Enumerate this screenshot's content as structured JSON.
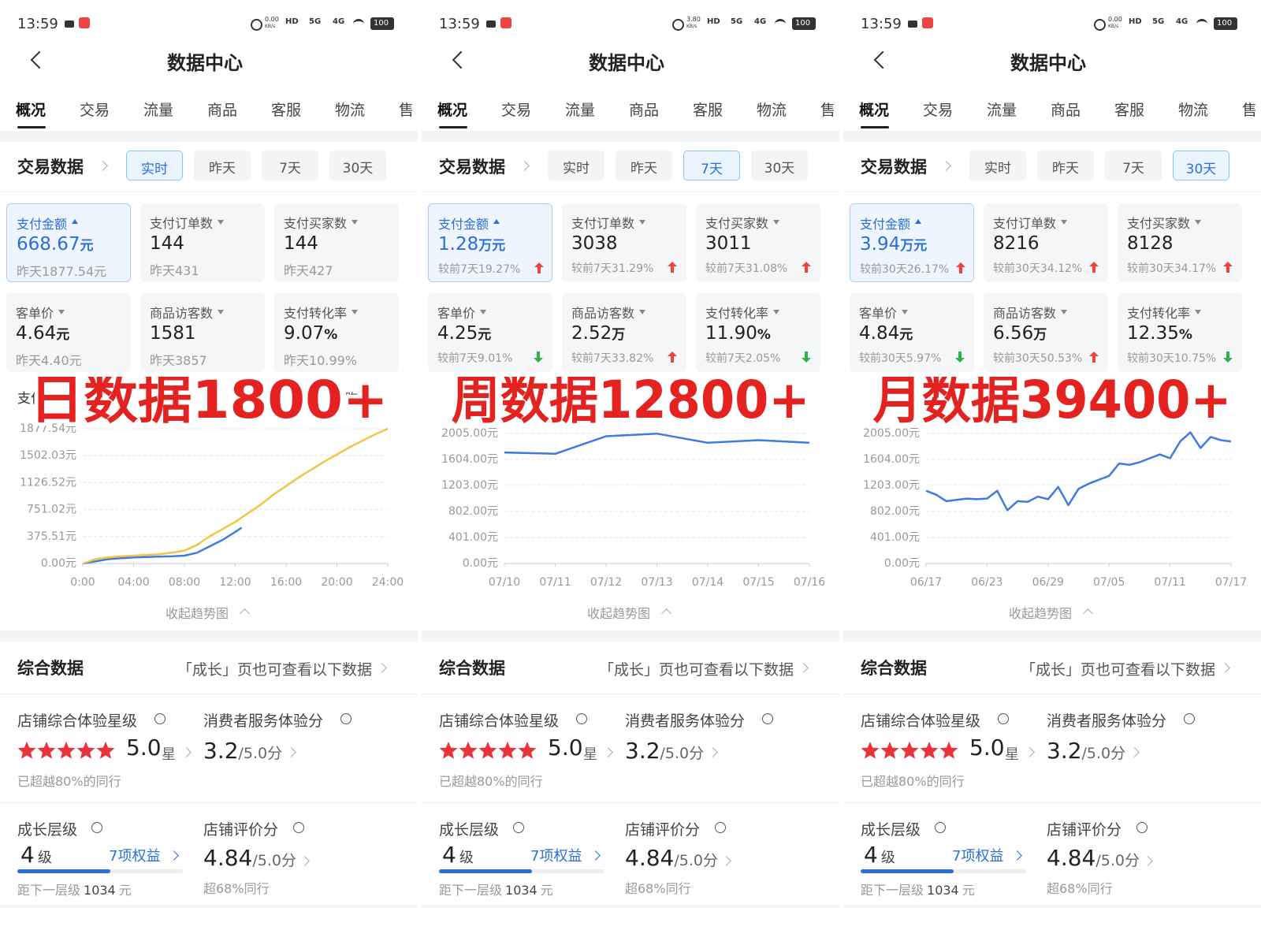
{
  "chart_data": [
    {
      "type": "line",
      "title": "支付",
      "xlim": [
        0,
        24
      ],
      "xticks": [
        {
          "value": 0,
          "label": "0:00"
        },
        {
          "value": 4,
          "label": "04:00"
        },
        {
          "value": 8,
          "label": "08:00"
        },
        {
          "value": 12,
          "label": "12:00"
        },
        {
          "value": 16,
          "label": "16:00"
        },
        {
          "value": 20,
          "label": "20:00"
        },
        {
          "value": 24,
          "label": "24:00"
        }
      ],
      "ylim": [
        0,
        1900
      ],
      "yticks": [
        {
          "value": 0,
          "label": "0.00元"
        },
        {
          "value": 375.51,
          "label": "375.51元"
        },
        {
          "value": 751.02,
          "label": "751.02元"
        },
        {
          "value": 1126.52,
          "label": "1126.52元"
        },
        {
          "value": 1502.03,
          "label": "1502.03元"
        },
        {
          "value": 1877.54,
          "label": "1877.54元"
        }
      ],
      "grid": true,
      "series": [
        {
          "color": "#3d7be3",
          "x": [
            0,
            1,
            2,
            3,
            4,
            5,
            6,
            7,
            8,
            9,
            10,
            11,
            12,
            12.5
          ],
          "values": [
            0,
            30,
            60,
            75,
            85,
            90,
            95,
            100,
            110,
            150,
            240,
            330,
            440,
            500
          ]
        },
        {
          "name": "昨天",
          "color": "#f2c447",
          "x": [
            0,
            1,
            2,
            3,
            4,
            5,
            6,
            7,
            8,
            9,
            10,
            11,
            12,
            13,
            14,
            15,
            16,
            17,
            18,
            19,
            20,
            21,
            22,
            23,
            24
          ],
          "values": [
            0,
            60,
            85,
            100,
            110,
            120,
            130,
            150,
            180,
            260,
            380,
            480,
            580,
            700,
            820,
            960,
            1080,
            1200,
            1310,
            1420,
            1520,
            1620,
            1710,
            1800,
            1877.54
          ]
        }
      ]
    },
    {
      "type": "line",
      "categories": [
        "07/10",
        "07/11",
        "07/12",
        "07/13",
        "07/14",
        "07/15",
        "07/16"
      ],
      "ylim": [
        0,
        2100
      ],
      "yticks": [
        {
          "value": 0,
          "label": "0.00元"
        },
        {
          "value": 401,
          "label": "401.00元"
        },
        {
          "value": 802,
          "label": "802.00元"
        },
        {
          "value": 1203,
          "label": "1203.00元"
        },
        {
          "value": 1604,
          "label": "1604.00元"
        },
        {
          "value": 2005,
          "label": "2005.00元"
        }
      ],
      "grid": true,
      "series": [
        {
          "color": "#3d7be3",
          "values": [
            1710,
            1690,
            1960,
            2000,
            1860,
            1900,
            1860
          ]
        }
      ]
    },
    {
      "type": "line",
      "categories": [
        "06/17",
        null,
        null,
        null,
        null,
        null,
        "06/23",
        null,
        null,
        null,
        null,
        null,
        "06/29",
        null,
        null,
        null,
        null,
        null,
        "07/05",
        null,
        null,
        null,
        null,
        null,
        "07/11",
        null,
        null,
        null,
        null,
        null,
        "07/17"
      ],
      "ylim": [
        0,
        2100
      ],
      "yticks": [
        {
          "value": 0,
          "label": "0.00元"
        },
        {
          "value": 401,
          "label": "401.00元"
        },
        {
          "value": 802,
          "label": "802.00元"
        },
        {
          "value": 1203,
          "label": "1203.00元"
        },
        {
          "value": 1604,
          "label": "1604.00元"
        },
        {
          "value": 2005,
          "label": "2005.00元"
        }
      ],
      "grid": true,
      "series": [
        {
          "color": "#3d7be3",
          "values": [
            1120,
            1060,
            960,
            980,
            1000,
            990,
            1000,
            1120,
            820,
            960,
            950,
            1030,
            990,
            1180,
            900,
            1150,
            1230,
            1290,
            1350,
            1540,
            1520,
            1560,
            1620,
            1680,
            1620,
            1880,
            2020,
            1780,
            1950,
            1900,
            1880
          ]
        }
      ]
    }
  ],
  "panels": [
    {
      "status": {
        "time": "13:59",
        "speed": "0.00",
        "speed_unit": "KB/s",
        "signals": [
          "HD",
          "5G",
          "4G"
        ],
        "battery": "100"
      },
      "header": {
        "title": "数据中心"
      },
      "tabs": {
        "items": [
          "概况",
          "交易",
          "流量",
          "商品",
          "客服",
          "物流",
          "售"
        ],
        "active": 0
      },
      "trade": {
        "title": "交易数据",
        "ranges": [
          "实时",
          "昨天",
          "7天",
          "30天"
        ],
        "active_range": 0,
        "metrics": [
          {
            "label": "支付金额",
            "value": "668.67",
            "unit": "元",
            "compare": "昨天1877.54元"
          },
          {
            "label": "支付订单数",
            "value": "144",
            "compare": "昨天431"
          },
          {
            "label": "支付买家数",
            "value": "144",
            "compare": "昨天427"
          },
          {
            "label": "客单价",
            "value": "4.64",
            "unit": "元",
            "compare": "昨天4.40元"
          },
          {
            "label": "商品访客数",
            "value": "1581",
            "compare": "昨天3857"
          },
          {
            "label": "支付转化率",
            "value": "9.07",
            "unit": "%",
            "compare": "昨天10.99%"
          }
        ]
      },
      "overlay": "日数据1800+",
      "collapse": "收起趋势图",
      "summary": {
        "title": "综合数据",
        "hint": "「成长」页也可查看以下数据",
        "star": {
          "label": "店铺综合体验星级",
          "value": "5.0",
          "unit": "星",
          "note": "已超越80%的同行"
        },
        "service": {
          "label": "消费者服务体验分",
          "value": "3.2",
          "unit": "/5.0分"
        },
        "growth": {
          "label": "成长层级",
          "value": "4",
          "unit": "级",
          "benefit": "7项权益",
          "next_prefix": "距下一层级",
          "next_value": "1034",
          "next_unit": "元"
        },
        "rating": {
          "label": "店铺评价分",
          "value": "4.84",
          "unit": "/5.0分",
          "note": "超68%同行"
        }
      }
    },
    {
      "status": {
        "time": "13:59",
        "speed": "3.80",
        "speed_unit": "KB/s",
        "signals": [
          "HD",
          "5G",
          "4G"
        ],
        "battery": "100"
      },
      "header": {
        "title": "数据中心"
      },
      "tabs": {
        "items": [
          "概况",
          "交易",
          "流量",
          "商品",
          "客服",
          "物流",
          "售"
        ],
        "active": 0
      },
      "trade": {
        "title": "交易数据",
        "ranges": [
          "实时",
          "昨天",
          "7天",
          "30天"
        ],
        "active_range": 2,
        "metrics": [
          {
            "label": "支付金额",
            "value": "1.28",
            "unit": "万元",
            "compare": "较前7天19.27%",
            "trend": "up"
          },
          {
            "label": "支付订单数",
            "value": "3038",
            "compare": "较前7天31.29%",
            "trend": "up"
          },
          {
            "label": "支付买家数",
            "value": "3011",
            "compare": "较前7天31.08%",
            "trend": "up"
          },
          {
            "label": "客单价",
            "value": "4.25",
            "unit": "元",
            "compare": "较前7天9.01%",
            "trend": "down"
          },
          {
            "label": "商品访客数",
            "value": "2.52",
            "unit": "万",
            "compare": "较前7天33.82%",
            "trend": "up"
          },
          {
            "label": "支付转化率",
            "value": "11.90",
            "unit": "%",
            "compare": "较前7天2.05%",
            "trend": "down"
          }
        ]
      },
      "overlay": "周数据12800+",
      "collapse": "收起趋势图",
      "summary": {
        "title": "综合数据",
        "hint": "「成长」页也可查看以下数据",
        "star": {
          "label": "店铺综合体验星级",
          "value": "5.0",
          "unit": "星",
          "note": "已超越80%的同行"
        },
        "service": {
          "label": "消费者服务体验分",
          "value": "3.2",
          "unit": "/5.0分"
        },
        "growth": {
          "label": "成长层级",
          "value": "4",
          "unit": "级",
          "benefit": "7项权益",
          "next_prefix": "距下一层级",
          "next_value": "1034",
          "next_unit": "元"
        },
        "rating": {
          "label": "店铺评价分",
          "value": "4.84",
          "unit": "/5.0分",
          "note": "超68%同行"
        }
      }
    },
    {
      "status": {
        "time": "13:59",
        "speed": "0.00",
        "speed_unit": "KB/s",
        "signals": [
          "HD",
          "5G",
          "4G"
        ],
        "battery": "100"
      },
      "header": {
        "title": "数据中心"
      },
      "tabs": {
        "items": [
          "概况",
          "交易",
          "流量",
          "商品",
          "客服",
          "物流",
          "售"
        ],
        "active": 0
      },
      "trade": {
        "title": "交易数据",
        "ranges": [
          "实时",
          "昨天",
          "7天",
          "30天"
        ],
        "active_range": 3,
        "metrics": [
          {
            "label": "支付金额",
            "value": "3.94",
            "unit": "万元",
            "compare": "较前30天26.17%",
            "trend": "up"
          },
          {
            "label": "支付订单数",
            "value": "8216",
            "compare": "较前30天34.12%",
            "trend": "up"
          },
          {
            "label": "支付买家数",
            "value": "8128",
            "compare": "较前30天34.17%",
            "trend": "up"
          },
          {
            "label": "客单价",
            "value": "4.84",
            "unit": "元",
            "compare": "较前30天5.97%",
            "trend": "down"
          },
          {
            "label": "商品访客数",
            "value": "6.56",
            "unit": "万",
            "compare": "较前30天50.53%",
            "trend": "up"
          },
          {
            "label": "支付转化率",
            "value": "12.35",
            "unit": "%",
            "compare": "较前30天10.75%",
            "trend": "down"
          }
        ]
      },
      "overlay": "月数据39400+",
      "collapse": "收起趋势图",
      "summary": {
        "title": "综合数据",
        "hint": "「成长」页也可查看以下数据",
        "star": {
          "label": "店铺综合体验星级",
          "value": "5.0",
          "unit": "星",
          "note": "已超越80%的同行"
        },
        "service": {
          "label": "消费者服务体验分",
          "value": "3.2",
          "unit": "/5.0分"
        },
        "growth": {
          "label": "成长层级",
          "value": "4",
          "unit": "级",
          "benefit": "7项权益",
          "next_prefix": "距下一层级",
          "next_value": "1034",
          "next_unit": "元"
        },
        "rating": {
          "label": "店铺评价分",
          "value": "4.84",
          "unit": "/5.0分",
          "note": "超68%同行"
        }
      }
    }
  ]
}
